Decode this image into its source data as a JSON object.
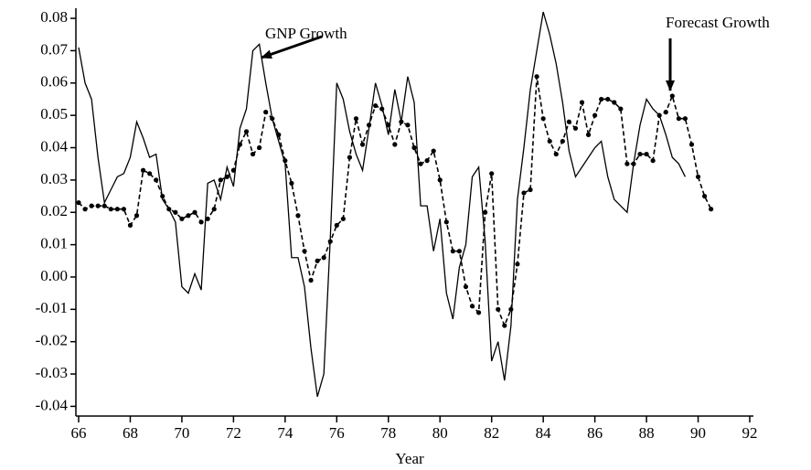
{
  "chart_data": {
    "type": "line",
    "xlabel": "Year",
    "xlim": [
      66,
      92
    ],
    "xticks": [
      66,
      68,
      70,
      72,
      74,
      76,
      78,
      80,
      82,
      84,
      86,
      88,
      90,
      92
    ],
    "ylim": [
      -0.043,
      0.082
    ],
    "yticks": [
      0.08,
      0.07,
      0.06,
      0.05,
      0.04,
      0.03,
      0.02,
      0.01,
      {
        "value": 0,
        "label": "0.00"
      },
      -0.01,
      -0.02,
      -0.03,
      -0.04
    ],
    "series": [
      {
        "name": "GNP Growth",
        "color": "#000000",
        "style": "solid",
        "x": [
          66,
          66.25,
          66.5,
          66.75,
          67,
          67.25,
          67.5,
          67.75,
          68,
          68.25,
          68.5,
          68.75,
          69,
          69.25,
          69.5,
          69.75,
          70,
          70.25,
          70.5,
          70.75,
          71,
          71.25,
          71.5,
          71.75,
          72,
          72.25,
          72.5,
          72.75,
          73,
          73.25,
          73.5,
          73.75,
          74,
          74.25,
          74.5,
          74.75,
          75,
          75.25,
          75.5,
          75.75,
          76,
          76.25,
          76.5,
          76.75,
          77,
          77.25,
          77.5,
          77.75,
          78,
          78.25,
          78.5,
          78.75,
          79,
          79.25,
          79.5,
          79.75,
          80,
          80.25,
          80.5,
          80.75,
          81,
          81.25,
          81.5,
          81.75,
          82,
          82.25,
          82.5,
          82.75,
          83,
          83.25,
          83.5,
          83.75,
          84,
          84.25,
          84.5,
          84.75,
          85,
          85.25,
          85.5,
          85.75,
          86,
          86.25,
          86.5,
          86.75,
          87,
          87.25,
          87.5,
          87.75,
          88,
          88.25,
          88.5,
          88.75,
          89,
          89.25,
          89.5
        ],
        "values": [
          0.071,
          0.06,
          0.055,
          0.037,
          0.023,
          0.027,
          0.031,
          0.032,
          0.037,
          0.048,
          0.043,
          0.037,
          0.038,
          0.024,
          0.021,
          0.017,
          -0.003,
          -0.005,
          0.001,
          -0.004,
          0.029,
          0.03,
          0.024,
          0.034,
          0.028,
          0.046,
          0.052,
          0.07,
          0.072,
          0.06,
          0.049,
          0.042,
          0.035,
          0.006,
          0.006,
          -0.003,
          -0.022,
          -0.037,
          -0.03,
          0.012,
          0.06,
          0.055,
          0.045,
          0.038,
          0.033,
          0.046,
          0.06,
          0.053,
          0.044,
          0.058,
          0.048,
          0.062,
          0.054,
          0.022,
          0.022,
          0.008,
          0.018,
          -0.005,
          -0.013,
          0.003,
          0.01,
          0.031,
          0.034,
          0.011,
          -0.026,
          -0.02,
          -0.032,
          -0.015,
          0.024,
          0.04,
          0.058,
          0.07,
          0.082,
          0.075,
          0.066,
          0.054,
          0.039,
          0.031,
          0.034,
          0.037,
          0.04,
          0.042,
          0.031,
          0.024,
          0.022,
          0.02,
          0.035,
          0.047,
          0.055,
          0.052,
          0.05,
          0.044,
          0.037,
          0.035,
          0.031
        ]
      },
      {
        "name": "Forecast Growth",
        "color": "#000000",
        "style": "dashed",
        "x": [
          66,
          66.25,
          66.5,
          66.75,
          67,
          67.25,
          67.5,
          67.75,
          68,
          68.25,
          68.5,
          68.75,
          69,
          69.25,
          69.5,
          69.75,
          70,
          70.25,
          70.5,
          70.75,
          71,
          71.25,
          71.5,
          71.75,
          72,
          72.25,
          72.5,
          72.75,
          73,
          73.25,
          73.5,
          73.75,
          74,
          74.25,
          74.5,
          74.75,
          75,
          75.25,
          75.5,
          75.75,
          76,
          76.25,
          76.5,
          76.75,
          77,
          77.25,
          77.5,
          77.75,
          78,
          78.25,
          78.5,
          78.75,
          79,
          79.25,
          79.5,
          79.75,
          80,
          80.25,
          80.5,
          80.75,
          81,
          81.25,
          81.5,
          81.75,
          82,
          82.25,
          82.5,
          82.75,
          83,
          83.25,
          83.5,
          83.75,
          84,
          84.25,
          84.5,
          84.75,
          85,
          85.25,
          85.5,
          85.75,
          86,
          86.25,
          86.5,
          86.75,
          87,
          87.25,
          87.5,
          87.75,
          88,
          88.25,
          88.5,
          88.75,
          89,
          89.25,
          89.5,
          89.75,
          90,
          90.25,
          90.5
        ],
        "values": [
          0.023,
          0.021,
          0.022,
          0.022,
          0.022,
          0.021,
          0.021,
          0.021,
          0.016,
          0.019,
          0.033,
          0.032,
          0.03,
          0.025,
          0.021,
          0.02,
          0.018,
          0.019,
          0.02,
          0.017,
          0.018,
          0.021,
          0.03,
          0.031,
          0.033,
          0.041,
          0.045,
          0.038,
          0.04,
          0.051,
          0.049,
          0.044,
          0.036,
          0.029,
          0.019,
          0.008,
          -0.001,
          0.005,
          0.006,
          0.011,
          0.016,
          0.018,
          0.037,
          0.049,
          0.041,
          0.047,
          0.053,
          0.052,
          0.047,
          0.041,
          0.048,
          0.047,
          0.04,
          0.035,
          0.036,
          0.039,
          0.03,
          0.017,
          0.008,
          0.008,
          -0.003,
          -0.009,
          -0.011,
          0.02,
          0.032,
          -0.01,
          -0.015,
          -0.01,
          0.004,
          0.026,
          0.027,
          0.062,
          0.049,
          0.042,
          0.038,
          0.042,
          0.048,
          0.046,
          0.054,
          0.044,
          0.05,
          0.055,
          0.055,
          0.054,
          0.052,
          0.035,
          0.035,
          0.038,
          0.038,
          0.036,
          0.05,
          0.051,
          0.056,
          0.049,
          0.049,
          0.041,
          0.031,
          0.025,
          0.021
        ]
      }
    ]
  }
}
